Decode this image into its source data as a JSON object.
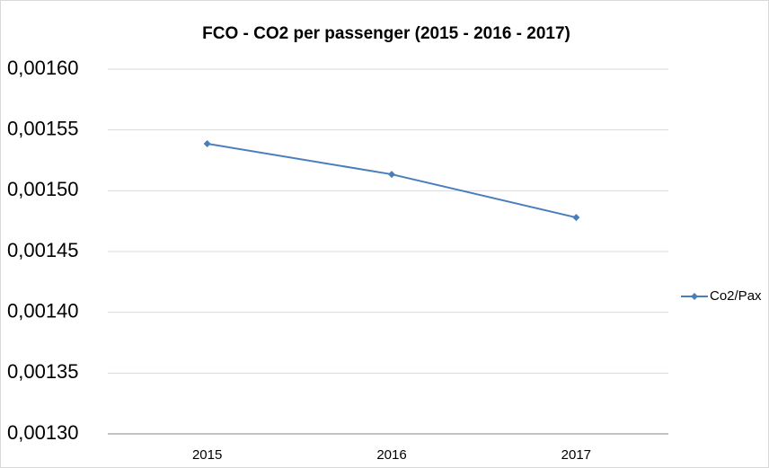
{
  "chart_data": {
    "type": "line",
    "title": "FCO - CO2 per passenger (2015 - 2016 - 2017)",
    "categories": [
      "2015",
      "2016",
      "2017"
    ],
    "series": [
      {
        "name": "Co2/Pax",
        "color": "#4a7ebb",
        "values": [
          0.0015387,
          0.0015135,
          0.001478
        ]
      }
    ],
    "ylim": [
      0.0013,
      0.0016
    ],
    "yticks": [
      {
        "value": 0.0013,
        "label": "0,00130"
      },
      {
        "value": 0.00135,
        "label": "0,00135"
      },
      {
        "value": 0.0014,
        "label": "0,00140"
      },
      {
        "value": 0.00145,
        "label": "0,00145"
      },
      {
        "value": 0.0015,
        "label": "0,00150"
      },
      {
        "value": 0.00155,
        "label": "0,00155"
      },
      {
        "value": 0.0016,
        "label": "0,00160"
      }
    ],
    "grid": true,
    "legend": "right"
  }
}
